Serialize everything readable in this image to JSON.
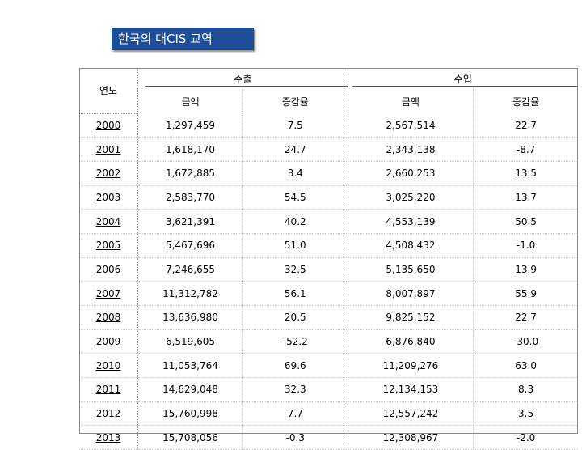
{
  "title": "한국의 대CIS 교역",
  "headers": {
    "year": "연도",
    "export": "수출",
    "import": "수입",
    "amount": "금액",
    "growth": "증감율"
  },
  "rows": [
    {
      "year": "2000",
      "export_amount": "1,297,459",
      "export_growth": "7.5",
      "import_amount": "2,567,514",
      "import_growth": "22.7"
    },
    {
      "year": "2001",
      "export_amount": "1,618,170",
      "export_growth": "24.7",
      "import_amount": "2,343,138",
      "import_growth": "-8.7"
    },
    {
      "year": "2002",
      "export_amount": "1,672,885",
      "export_growth": "3.4",
      "import_amount": "2,660,253",
      "import_growth": "13.5"
    },
    {
      "year": "2003",
      "export_amount": "2,583,770",
      "export_growth": "54.5",
      "import_amount": "3,025,220",
      "import_growth": "13.7"
    },
    {
      "year": "2004",
      "export_amount": "3,621,391",
      "export_growth": "40.2",
      "import_amount": "4,553,139",
      "import_growth": "50.5"
    },
    {
      "year": "2005",
      "export_amount": "5,467,696",
      "export_growth": "51.0",
      "import_amount": "4,508,432",
      "import_growth": "-1.0"
    },
    {
      "year": "2006",
      "export_amount": "7,246,655",
      "export_growth": "32.5",
      "import_amount": "5,135,650",
      "import_growth": "13.9"
    },
    {
      "year": "2007",
      "export_amount": "11,312,782",
      "export_growth": "56.1",
      "import_amount": "8,007,897",
      "import_growth": "55.9"
    },
    {
      "year": "2008",
      "export_amount": "13,636,980",
      "export_growth": "20.5",
      "import_amount": "9,825,152",
      "import_growth": "22.7"
    },
    {
      "year": "2009",
      "export_amount": "6,519,605",
      "export_growth": "-52.2",
      "import_amount": "6,876,840",
      "import_growth": "-30.0"
    },
    {
      "year": "2010",
      "export_amount": "11,053,764",
      "export_growth": "69.6",
      "import_amount": "11,209,276",
      "import_growth": "63.0"
    },
    {
      "year": "2011",
      "export_amount": "14,629,048",
      "export_growth": "32.3",
      "import_amount": "12,134,153",
      "import_growth": "8.3"
    },
    {
      "year": "2012",
      "export_amount": "15,760,998",
      "export_growth": "7.7",
      "import_amount": "12,557,242",
      "import_growth": "3.5"
    },
    {
      "year": "2013",
      "export_amount": "15,708,056",
      "export_growth": "-0.3",
      "import_amount": "12,308,967",
      "import_growth": "-2.0"
    }
  ]
}
